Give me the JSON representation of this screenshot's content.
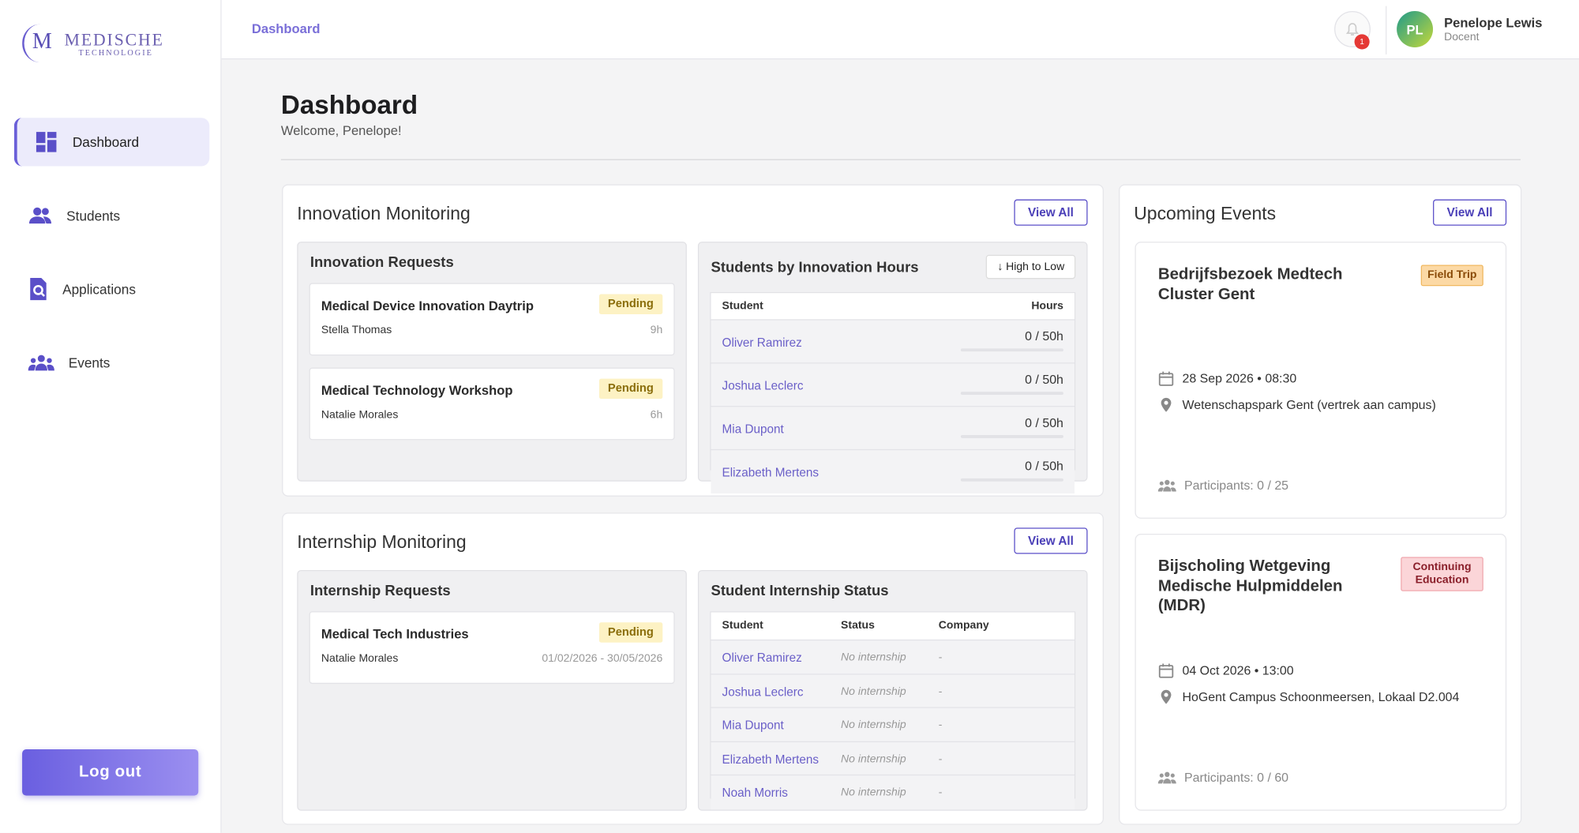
{
  "sidebar": {
    "logo": {
      "mark": "M",
      "name": "MEDISCHE",
      "sub": "TECHNOLOGIE"
    },
    "nav": [
      {
        "label": "Dashboard",
        "active": true
      },
      {
        "label": "Students",
        "active": false
      },
      {
        "label": "Applications",
        "active": false
      },
      {
        "label": "Events",
        "active": false
      }
    ],
    "logout": "Log out"
  },
  "topbar": {
    "breadcrumb": "Dashboard",
    "notifications": 1,
    "user": {
      "initials": "PL",
      "name": "Penelope Lewis",
      "role": "Docent"
    }
  },
  "page": {
    "title": "Dashboard",
    "subtitle": "Welcome, Penelope!"
  },
  "innovation": {
    "title": "Innovation Monitoring",
    "view_all": "View All",
    "requests": {
      "title": "Innovation Requests",
      "items": [
        {
          "title": "Medical Device Innovation Daytrip",
          "status": "Pending",
          "student": "Stella Thomas",
          "meta": "9h"
        },
        {
          "title": "Medical Technology Workshop",
          "status": "Pending",
          "student": "Natalie Morales",
          "meta": "6h"
        }
      ]
    },
    "hours": {
      "title": "Students by Innovation Hours",
      "sort": "↓ High to Low",
      "columns": [
        "Student",
        "Hours"
      ],
      "rows": [
        {
          "student": "Oliver Ramirez",
          "hours": "0 / 50h"
        },
        {
          "student": "Joshua Leclerc",
          "hours": "0 / 50h"
        },
        {
          "student": "Mia Dupont",
          "hours": "0 / 50h"
        },
        {
          "student": "Elizabeth Mertens",
          "hours": "0 / 50h"
        }
      ]
    }
  },
  "internship": {
    "title": "Internship Monitoring",
    "view_all": "View All",
    "requests": {
      "title": "Internship Requests",
      "items": [
        {
          "title": "Medical Tech Industries",
          "status": "Pending",
          "student": "Natalie Morales",
          "meta": "01/02/2026 - 30/05/2026"
        }
      ]
    },
    "status": {
      "title": "Student Internship Status",
      "columns": [
        "Student",
        "Status",
        "Company"
      ],
      "rows": [
        {
          "student": "Oliver Ramirez",
          "status": "No internship",
          "company": "-"
        },
        {
          "student": "Joshua Leclerc",
          "status": "No internship",
          "company": "-"
        },
        {
          "student": "Mia Dupont",
          "status": "No internship",
          "company": "-"
        },
        {
          "student": "Elizabeth Mertens",
          "status": "No internship",
          "company": "-"
        },
        {
          "student": "Noah Morris",
          "status": "No internship",
          "company": "-"
        }
      ]
    }
  },
  "events": {
    "title": "Upcoming Events",
    "view_all": "View All",
    "items": [
      {
        "title": "Bedrijfsbezoek Medtech Cluster Gent",
        "tag": "Field Trip",
        "date": "28 Sep 2026 • 08:30",
        "location": "Wetenschapspark Gent (vertrek aan campus)",
        "participants": "Participants: 0 / 25"
      },
      {
        "title": "Bijscholing Wetgeving Medische Hulpmiddelen (MDR)",
        "tag": "Continuing Education",
        "date": "04 Oct 2026 • 13:00",
        "location": "HoGent Campus Schoonmeersen, Lokaal D2.004",
        "participants": "Participants: 0 / 60"
      }
    ]
  }
}
